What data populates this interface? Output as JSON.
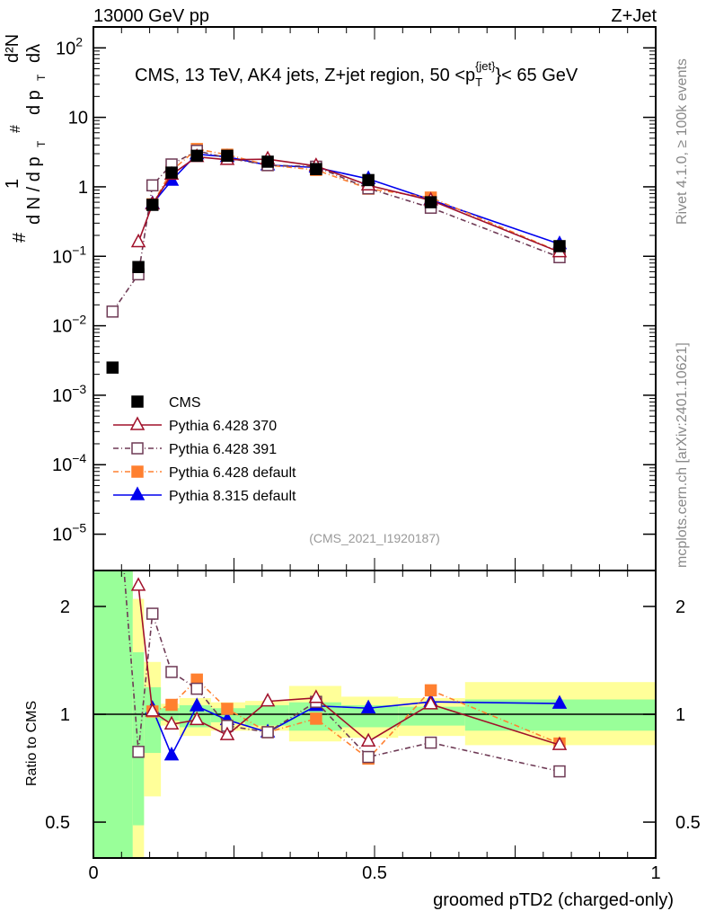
{
  "header": {
    "left": "13000 GeV pp",
    "right": "Z+Jet"
  },
  "side_labels": {
    "rivet": "Rivet 4.1.0, ≥ 100k events",
    "mcplots": "mcplots.cern.ch [arXiv:2401.10621]"
  },
  "watermark": "(CMS_2021_I1920187)",
  "chart_data": [
    {
      "type": "line",
      "title": "CMS, 13 TeV, AK4 jets, Z+jet region, 50 <p_T^{jet}< 65 GeV",
      "title_parts": {
        "a": "CMS, 13 TeV, AK4 jets, Z+jet region, 50 <p",
        "sub": "T",
        "sup": "{jet}",
        "b": "}< 65 GeV"
      },
      "ylabel": "1/(dN/dp_T) d²N/dp_T dλ",
      "ylabel_parts": {
        "one": "1",
        "den": "d N / d p",
        "T": "T",
        "hash": "#",
        "num": "d²N",
        "den2": "d p",
        "lam": "dλ"
      },
      "yscale": "log",
      "ylim": [
        3e-06,
        200
      ],
      "xlim": [
        0,
        1
      ],
      "yticks": [
        {
          "v": 100,
          "base": "10",
          "exp": "2"
        },
        {
          "v": 10,
          "base": "10",
          "exp": ""
        },
        {
          "v": 1,
          "base": "1",
          "exp": ""
        },
        {
          "v": 0.1,
          "base": "10",
          "exp": "−1"
        },
        {
          "v": 0.01,
          "base": "10",
          "exp": "−2"
        },
        {
          "v": 0.001,
          "base": "10",
          "exp": "−3"
        },
        {
          "v": 0.0001,
          "base": "10",
          "exp": "−4"
        },
        {
          "v": 1e-05,
          "base": "10",
          "exp": "−5"
        }
      ],
      "legend_placement": "bottom-left",
      "x": [
        0.034,
        0.08,
        0.105,
        0.139,
        0.184,
        0.238,
        0.31,
        0.396,
        0.489,
        0.6,
        0.829
      ],
      "series": [
        {
          "name": "CMS",
          "color": "#000000",
          "marker": "square-filled",
          "dash": "",
          "values": [
            0.0025,
            0.07,
            0.55,
            1.6,
            2.8,
            2.8,
            2.3,
            1.8,
            1.25,
            0.6,
            0.14
          ]
        },
        {
          "name": "Pythia 6.428 370",
          "color": "#a0102a",
          "marker": "triangle-open",
          "dash": "",
          "values": [
            null,
            0.16,
            0.56,
            1.5,
            2.7,
            2.45,
            2.5,
            2.0,
            1.05,
            0.64,
            0.115
          ]
        },
        {
          "name": "Pythia 6.428 391",
          "color": "#6e3a55",
          "marker": "square-open",
          "dash": "6,3,1,3",
          "values": [
            0.016,
            0.055,
            1.05,
            2.1,
            3.3,
            2.6,
            2.05,
            1.95,
            0.95,
            0.5,
            0.097
          ]
        },
        {
          "name": "Pythia 6.428 default",
          "color": "#ff8030",
          "marker": "square-filled",
          "dash": "6,3,1,3",
          "values": [
            null,
            null,
            0.56,
            1.7,
            3.5,
            2.9,
            2.05,
            1.75,
            0.94,
            0.7,
            0.116
          ]
        },
        {
          "name": "Pythia 8.315 default",
          "color": "#0000ee",
          "marker": "triangle-filled",
          "dash": "",
          "values": [
            null,
            null,
            0.57,
            1.23,
            2.95,
            2.7,
            2.05,
            1.9,
            1.3,
            0.65,
            0.15
          ]
        }
      ]
    },
    {
      "type": "line",
      "ylabel": "Ratio to CMS",
      "xlabel": "groomed pTD2 (charged-only)",
      "yscale": "log",
      "ylim": [
        0.397,
        2.52
      ],
      "xlim": [
        0,
        1
      ],
      "yticks": [
        {
          "v": 2,
          "label": "2"
        },
        {
          "v": 1,
          "label": "1"
        },
        {
          "v": 0.5,
          "label": "0.5"
        }
      ],
      "xticks": [
        {
          "v": 0,
          "label": "0"
        },
        {
          "v": 0.5,
          "label": "0.5"
        },
        {
          "v": 1,
          "label": "1"
        }
      ],
      "bins": [
        0,
        0.07,
        0.09,
        0.12,
        0.153,
        0.209,
        0.27,
        0.348,
        0.441,
        0.542,
        0.661,
        1.0
      ],
      "band_yellow": [
        [
          0.397,
          2.52
        ],
        [
          0.35,
          2.1
        ],
        [
          0.59,
          1.4
        ],
        [
          0.93,
          1.07
        ],
        [
          0.87,
          1.11
        ],
        [
          0.9,
          1.08
        ],
        [
          0.9,
          1.09
        ],
        [
          0.84,
          1.2
        ],
        [
          0.86,
          1.12
        ],
        [
          0.87,
          1.11
        ],
        [
          0.82,
          1.23
        ]
      ],
      "band_green": [
        [
          0.397,
          2.52
        ],
        [
          0.49,
          1.49
        ],
        [
          0.78,
          1.19
        ],
        [
          0.96,
          1.04
        ],
        [
          0.92,
          1.06
        ],
        [
          0.95,
          1.04
        ],
        [
          0.93,
          1.06
        ],
        [
          0.9,
          1.08
        ],
        [
          0.92,
          1.06
        ],
        [
          0.93,
          1.05
        ],
        [
          0.9,
          1.1
        ]
      ]
    }
  ]
}
